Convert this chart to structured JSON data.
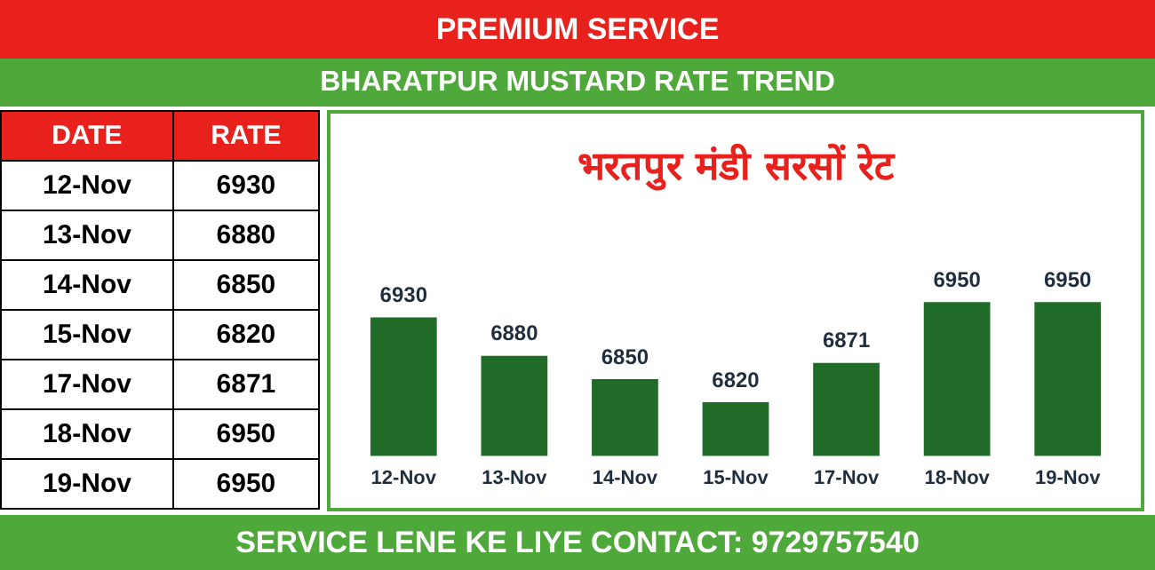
{
  "chart_data": {
    "type": "bar",
    "title": "BHARATPUR MUSTARD RATE TREND",
    "subtitle": "भरतपुर मंडी सरसों रेट",
    "annotations": [
      "PREMIUM SERVICE",
      "SERVICE LENE KE LIYE CONTACT: 9729757540",
      "DATE",
      "RATE",
      "6930",
      "6880",
      "6850",
      "6820",
      "6871",
      "6950",
      "6950"
    ],
    "categories": [
      "12-Nov",
      "13-Nov",
      "14-Nov",
      "15-Nov",
      "17-Nov",
      "18-Nov",
      "19-Nov"
    ],
    "values": [
      6930,
      6880,
      6850,
      6820,
      6871,
      6950,
      6950
    ],
    "color": "#1f6b27",
    "tick_labels": "x",
    "grid": false,
    "legend": false,
    "data_labels": true
  }
}
